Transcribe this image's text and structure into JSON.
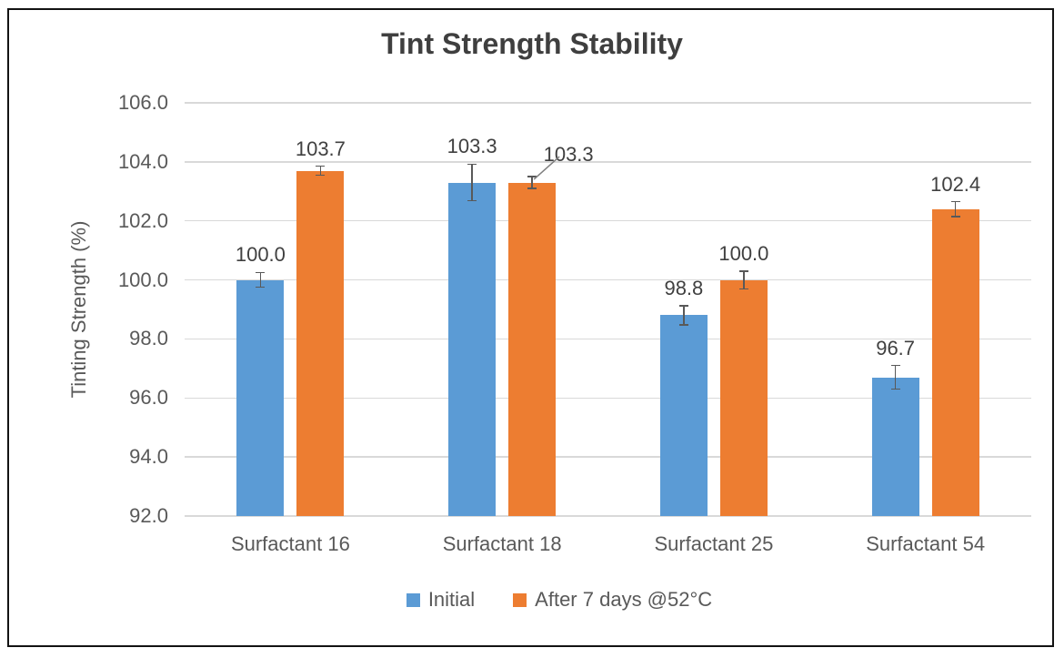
{
  "chart_data": {
    "type": "bar",
    "title": "Tint Strength Stability",
    "xlabel": "",
    "ylabel": "Tinting Strength (%)",
    "categories": [
      "Surfactant 16",
      "Surfactant 18",
      "Surfactant 25",
      "Surfactant 54"
    ],
    "series": [
      {
        "name": "Initial",
        "color": "#5B9BD5",
        "values": [
          100.0,
          103.3,
          98.8,
          96.7
        ],
        "labels": [
          "100.0",
          "103.3",
          "98.8",
          "96.7"
        ],
        "errors": [
          0.25,
          0.62,
          0.33,
          0.4
        ]
      },
      {
        "name": "After 7 days @52°C",
        "color": "#ED7D31",
        "values": [
          103.7,
          103.3,
          100.0,
          102.4
        ],
        "labels": [
          "103.7",
          "103.3",
          "100.0",
          "102.4"
        ],
        "errors": [
          0.15,
          0.2,
          0.3,
          0.25
        ]
      }
    ],
    "ylim": [
      92,
      106
    ],
    "yticks": [
      "106.0",
      "104.0",
      "102.0",
      "100.0",
      "98.0",
      "96.0",
      "94.0",
      "92.0"
    ],
    "grid": true,
    "legend_position": "bottom",
    "error_bar_color": "#595959",
    "gridline_color": "#d9d9d9",
    "label_callout": {
      "series_index": 1,
      "category_index": 1
    }
  }
}
